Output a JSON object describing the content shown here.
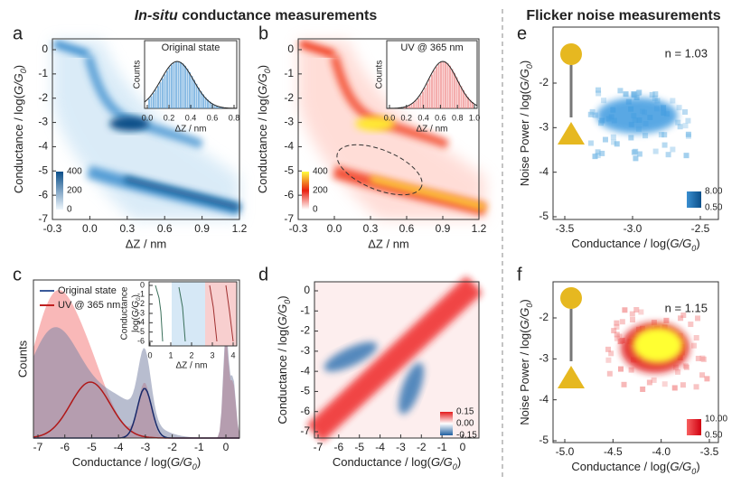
{
  "headers": {
    "left_italic": "In-situ",
    "left": "conductance measurements",
    "right": "Flicker noise measurements"
  },
  "panels": {
    "a": {
      "label": "a",
      "xlabel": "ΔZ / nm",
      "ylabel": {
        "text": "Conductance / log(",
        "var": "G/G",
        "sub": "0",
        "end": ")"
      },
      "xticks": [
        "-0.3",
        "0.0",
        "0.3",
        "0.6",
        "0.9",
        "1.2"
      ],
      "yticks": [
        "0",
        "-1",
        "-2",
        "-3",
        "-4",
        "-5",
        "-6",
        "-7"
      ],
      "colorbar": [
        "400",
        "200",
        "0"
      ],
      "inset": {
        "title": "Original state",
        "xlabel": "ΔZ / nm",
        "ylabel": "Counts",
        "xticks": [
          "0.0",
          "0.2",
          "0.4",
          "0.6",
          "0.8"
        ]
      }
    },
    "b": {
      "label": "b",
      "xlabel": "ΔZ / nm",
      "ylabel": {
        "text": "Conductance / log(",
        "var": "G/G",
        "sub": "0",
        "end": ")"
      },
      "xticks": [
        "-0.3",
        "0.0",
        "0.3",
        "0.6",
        "0.9",
        "1.2"
      ],
      "yticks": [
        "0",
        "-1",
        "-2",
        "-3",
        "-4",
        "-5",
        "-6",
        "-7"
      ],
      "colorbar": [
        "400",
        "200",
        "0"
      ],
      "inset": {
        "title": "UV @ 365 nm",
        "xlabel": "ΔZ / nm",
        "ylabel": "Counts",
        "xticks": [
          "0.0",
          "0.2",
          "0.4",
          "0.6",
          "0.8",
          "1.0"
        ]
      }
    },
    "c": {
      "label": "c",
      "xlabel": {
        "text": "Conductance / log(",
        "var": "G/G",
        "sub": "0",
        "end": ")"
      },
      "ylabel": "Counts",
      "xticks": [
        "-7",
        "-6",
        "-5",
        "-4",
        "-3",
        "-2",
        "-1",
        "0"
      ],
      "legend": [
        "Original state",
        "UV @ 365 nm"
      ],
      "inset": {
        "ylabel1": "Conductance",
        "ylabel2": {
          "text": "log(",
          "var": "G/G",
          "sub": "0",
          "end": ")"
        },
        "xlabel": "ΔZ / nm",
        "xticks": [
          "0",
          "1",
          "2",
          "3",
          "4"
        ],
        "yticks": [
          "0",
          "-1",
          "-2",
          "-3",
          "-4",
          "-5",
          "-6"
        ]
      }
    },
    "d": {
      "label": "d",
      "xlabel": {
        "text": "Conductance / log(",
        "var": "G/G",
        "sub": "0",
        "end": ")"
      },
      "ylabel": {
        "text": "Conductance / log(",
        "var": "G/G",
        "sub": "0",
        "end": ")"
      },
      "xticks": [
        "-7",
        "-6",
        "-5",
        "-4",
        "-3",
        "-2",
        "-1",
        "0"
      ],
      "yticks": [
        "0",
        "-1",
        "-2",
        "-3",
        "-4",
        "-5",
        "-6",
        "-7"
      ],
      "colorbar": [
        "0.15",
        "0.00",
        "-0.15"
      ]
    },
    "e": {
      "label": "e",
      "xlabel": {
        "text": "Conductance / log(",
        "var": "G/G",
        "sub": "0",
        "end": ")"
      },
      "ylabel": {
        "text": "Noise Power / log(",
        "var": "G/G",
        "sub": "0",
        "end": ")"
      },
      "xticks": [
        "-3.5",
        "-3.0",
        "-2.5"
      ],
      "yticks": [
        "-2",
        "-3",
        "-4",
        "-5"
      ],
      "annotation": "n = 1.03",
      "colorbar": [
        "8.00",
        "0.50"
      ]
    },
    "f": {
      "label": "f",
      "xlabel": {
        "text": "Conductance / log(",
        "var": "G/G",
        "sub": "0",
        "end": ")"
      },
      "ylabel": {
        "text": "Noise Power / log(",
        "var": "G/G",
        "sub": "0",
        "end": ")"
      },
      "xticks": [
        "-5.0",
        "-4.5",
        "-4.0",
        "-3.5"
      ],
      "yticks": [
        "-2",
        "-3",
        "-4",
        "-5"
      ],
      "annotation": "n = 1.15",
      "colorbar": [
        "10.00",
        "0.50"
      ]
    }
  }
}
